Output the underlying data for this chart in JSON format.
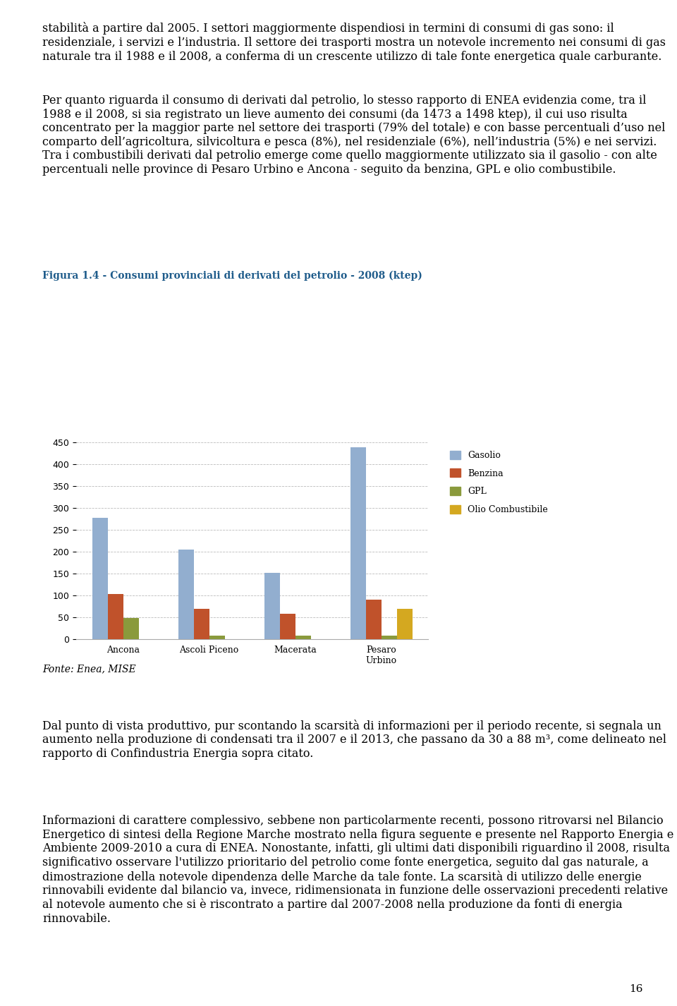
{
  "chart_title": "Figura 1.4 - Consumi provinciali di derivati del petrolio - 2008 (ktep)",
  "chart_title_color": "#1F5C8B",
  "categories": [
    "Ancona",
    "Ascoli Piceno",
    "Macerata",
    "Pesaro\nUrbino"
  ],
  "series": {
    "Gasolio": [
      278,
      205,
      152,
      440
    ],
    "Benzina": [
      103,
      68,
      57,
      90
    ],
    "GPL": [
      47,
      8,
      8,
      8
    ],
    "Olio Combustibile": [
      0,
      0,
      0,
      68
    ]
  },
  "colors": {
    "Gasolio": "#92AECF",
    "Benzina": "#C0522B",
    "GPL": "#8A9A3C",
    "Olio Combustibile": "#D4A820"
  },
  "ylim": [
    0,
    450
  ],
  "yticks": [
    0,
    50,
    100,
    150,
    200,
    250,
    300,
    350,
    400,
    450
  ],
  "fonte": "Fonte: Enea, MISE",
  "background_color": "#FFFFFF",
  "grid_color": "#BBBBBB",
  "bar_width": 0.18,
  "figure_width": 9.6,
  "figure_height": 14.26,
  "text_color": "#000000",
  "text_fontsize": 11.5,
  "page_number": "16",
  "para1": "stabilità a partire dal 2005. I settori maggiormente dispendiosi in termini di consumi di gas sono: il residenziale, i servizi e l’industria. Il settore dei trasporti mostra un notevole incremento nei consumi di gas naturale tra il 1988 e il 2008, a conferma di un crescente utilizzo di tale fonte energetica quale carburante.",
  "para2_prefix": "Per quanto riguarda il consumo di ",
  "para2_bold": "derivati dal petrolio",
  "para2_suffix": ", lo stesso rapporto di ENEA evidenzia come, tra il 1988 e il 2008, si sia registrato un lieve aumento dei consumi (da 1473 a 1498 ktep), il cui uso risulta concentrato per la maggior parte nel settore dei trasporti (79% del totale) e con basse percentuali d’uso nel comparto dell’agricoltura, silvicoltura e pesca (8%), nel residenziale (6%), nell’industria (5%) e nei servizi. Tra i combustibili derivati dal petrolio emerge come quello maggiormente utilizzato sia il gasolio - con alte percentuali nelle province di Pesaro Urbino e Ancona - seguito da benzina, GPL e olio combustibile.",
  "para3": "Dal punto di vista produttivo, pur scontando la scarsità di informazioni per il periodo recente, si segnala un aumento nella produzione di condensati tra il 2007 e il 2013, che passano da 30 a 88 m³, come delineato nel rapporto di Confindustria Energia sopra citato.",
  "para4": "Informazioni di carattere complessivo, sebbene non particolarmente recenti, possono ritrovarsi nel Bilancio Energetico di sintesi della Regione Marche mostrato nella figura seguente e presente nel Rapporto Energia e Ambiente 2009-2010 a cura di ENEA. Nonostante, infatti, gli ultimi dati disponibili riguardino il 2008, risulta significativo osservare l'utilizzo prioritario del petrolio come fonte energetica, seguito dal gas naturale, a dimostrazione della notevole dipendenza delle Marche da tale fonte. La scarsità di utilizzo delle energie rinnovabili evidente dal bilancio va, invece, ridimensionata in funzione delle osservazioni precedenti relative al notevole aumento che si è riscontrato a partire dal 2007-2008 nella produzione da fonti di energia rinnovabile."
}
